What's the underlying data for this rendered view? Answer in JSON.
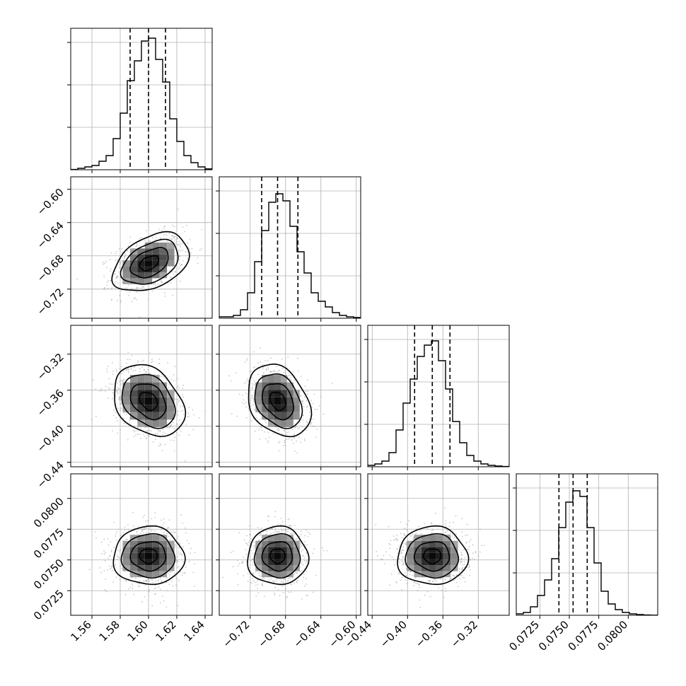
{
  "chart_data": {
    "type": "corner",
    "grid": true,
    "panels": [
      {
        "id": "hist-0",
        "type": "histogram",
        "row": 0,
        "col": 0,
        "xlim": [
          1.545,
          1.645
        ],
        "bin_edges": [
          1.545,
          1.55,
          1.555,
          1.56,
          1.565,
          1.57,
          1.575,
          1.58,
          1.585,
          1.59,
          1.595,
          1.6,
          1.605,
          1.61,
          1.615,
          1.62,
          1.625,
          1.63,
          1.635,
          1.64,
          1.645
        ],
        "counts": [
          0.2,
          1,
          2,
          3,
          6,
          10,
          22,
          40,
          63,
          77,
          91,
          93,
          78,
          62,
          36,
          20,
          10,
          5,
          2,
          0.6
        ],
        "ymax": 100,
        "ygrid": [
          30,
          60,
          90
        ],
        "quantiles": [
          1.587,
          1.6,
          1.612
        ]
      },
      {
        "id": "hist-1",
        "type": "histogram",
        "row": 1,
        "col": 1,
        "xlim": [
          -0.755,
          -0.595
        ],
        "bin_edges": [
          -0.755,
          -0.747,
          -0.739,
          -0.731,
          -0.723,
          -0.715,
          -0.707,
          -0.699,
          -0.691,
          -0.683,
          -0.675,
          -0.667,
          -0.659,
          -0.651,
          -0.643,
          -0.635,
          -0.627,
          -0.619,
          -0.611,
          -0.603,
          -0.595
        ],
        "counts": [
          1,
          1,
          2,
          6,
          18,
          40,
          62,
          82,
          88,
          83,
          65,
          47,
          32,
          18,
          12,
          8,
          4,
          2,
          1,
          0.5
        ],
        "ymax": 100,
        "ygrid": [
          30,
          60,
          90
        ],
        "quantiles": [
          -0.707,
          -0.689,
          -0.666
        ]
      },
      {
        "id": "hist-2",
        "type": "histogram",
        "row": 2,
        "col": 2,
        "xlim": [
          -0.445,
          -0.285
        ],
        "bin_edges": [
          -0.445,
          -0.437,
          -0.429,
          -0.421,
          -0.413,
          -0.405,
          -0.397,
          -0.389,
          -0.381,
          -0.373,
          -0.365,
          -0.357,
          -0.349,
          -0.341,
          -0.333,
          -0.325,
          -0.317,
          -0.309,
          -0.301,
          -0.293,
          -0.285
        ],
        "counts": [
          1,
          2,
          4,
          10,
          26,
          45,
          62,
          78,
          86,
          89,
          75,
          55,
          32,
          17,
          8,
          4,
          2,
          1,
          0.5,
          0.2
        ],
        "ymax": 100,
        "ygrid": [
          30,
          60,
          90
        ],
        "quantiles": [
          -0.392,
          -0.372,
          -0.352
        ]
      },
      {
        "id": "hist-3",
        "type": "histogram",
        "row": 3,
        "col": 3,
        "xlim": [
          0.0705,
          0.0825
        ],
        "bin_edges": [
          0.0705,
          0.0711,
          0.0717,
          0.0723,
          0.0729,
          0.0735,
          0.0741,
          0.0747,
          0.0753,
          0.0759,
          0.0765,
          0.0771,
          0.0777,
          0.0783,
          0.0789,
          0.0795,
          0.0801,
          0.0807,
          0.0813,
          0.0819,
          0.0825
        ],
        "counts": [
          1,
          2,
          6,
          14,
          25,
          40,
          62,
          80,
          88,
          84,
          62,
          37,
          17,
          8,
          4,
          2,
          1,
          0.5,
          0.2,
          0.1
        ],
        "ymax": 100,
        "ygrid": [
          30,
          60,
          90
        ],
        "quantiles": [
          0.07412,
          0.07532,
          0.07652
        ]
      },
      {
        "id": "2d-1-0",
        "type": "hist2d",
        "row": 1,
        "col": 0,
        "xlim": [
          1.545,
          1.645
        ],
        "ylim": [
          -0.755,
          -0.585
        ],
        "center": [
          1.6,
          -0.689
        ],
        "sigma": [
          0.0125,
          0.0171
        ],
        "rho": 0.38,
        "lean": 0.15
      },
      {
        "id": "2d-2-0",
        "type": "hist2d",
        "row": 2,
        "col": 0,
        "xlim": [
          1.545,
          1.645
        ],
        "ylim": [
          -0.445,
          -0.288
        ],
        "center": [
          1.6,
          -0.372
        ],
        "sigma": [
          0.0125,
          0.0198
        ],
        "rho": -0.3,
        "lean": 0
      },
      {
        "id": "2d-2-1",
        "type": "hist2d",
        "row": 2,
        "col": 1,
        "xlim": [
          -0.755,
          -0.595
        ],
        "ylim": [
          -0.445,
          -0.288
        ],
        "center": [
          -0.689,
          -0.372
        ],
        "sigma": [
          0.0171,
          0.0198
        ],
        "rho": -0.3,
        "lean": 0.08
      },
      {
        "id": "2d-3-0",
        "type": "hist2d",
        "row": 3,
        "col": 0,
        "xlim": [
          1.545,
          1.645
        ],
        "ylim": [
          0.0705,
          0.082
        ],
        "center": [
          1.6,
          0.07532
        ],
        "sigma": [
          0.0125,
          0.00118
        ],
        "rho": 0,
        "lean": 0
      },
      {
        "id": "2d-3-1",
        "type": "hist2d",
        "row": 3,
        "col": 1,
        "xlim": [
          -0.755,
          -0.595
        ],
        "ylim": [
          0.0705,
          0.082
        ],
        "center": [
          -0.689,
          0.07532
        ],
        "sigma": [
          0.0171,
          0.00118
        ],
        "rho": 0,
        "lean": 0
      },
      {
        "id": "2d-3-2",
        "type": "hist2d",
        "row": 3,
        "col": 2,
        "xlim": [
          -0.445,
          -0.285
        ],
        "ylim": [
          0.0705,
          0.082
        ],
        "center": [
          -0.372,
          0.07532
        ],
        "sigma": [
          0.0198,
          0.00118
        ],
        "rho": 0,
        "lean": 0
      }
    ],
    "x_ticks": [
      {
        "col": 0,
        "values": [
          1.56,
          1.58,
          1.6,
          1.62,
          1.64
        ],
        "labels": [
          "1.56",
          "1.58",
          "1.60",
          "1.62",
          "1.64"
        ]
      },
      {
        "col": 1,
        "values": [
          -0.72,
          -0.68,
          -0.64,
          -0.6
        ],
        "labels": [
          "−0.72",
          "−0.68",
          "−0.64",
          "−0.60"
        ]
      },
      {
        "col": 2,
        "values": [
          -0.44,
          -0.4,
          -0.36,
          -0.32
        ],
        "labels": [
          "−0.44",
          "−0.40",
          "−0.36",
          "−0.32"
        ]
      },
      {
        "col": 3,
        "values": [
          0.0725,
          0.075,
          0.0775,
          0.08
        ],
        "labels": [
          "0.0725",
          "0.0750",
          "0.0775",
          "0.0800"
        ]
      }
    ],
    "y_ticks": [
      {
        "row": 1,
        "values": [
          -0.6,
          -0.64,
          -0.68,
          -0.72
        ],
        "labels": [
          "−0.60",
          "−0.64",
          "−0.68",
          "−0.72"
        ]
      },
      {
        "row": 2,
        "values": [
          -0.32,
          -0.36,
          -0.4,
          -0.44
        ],
        "labels": [
          "−0.32",
          "−0.36",
          "−0.40",
          "−0.44"
        ]
      },
      {
        "row": 3,
        "values": [
          0.08,
          0.0775,
          0.075,
          0.0725
        ],
        "labels": [
          "0.0800",
          "0.0775",
          "0.0750",
          "0.0725"
        ]
      }
    ],
    "contour_levels_sigma": [
      0.5,
      1.0,
      1.5,
      2.0
    ],
    "colors": {
      "line": "#000000",
      "grid": "#b0b0b0",
      "points": "#9a9a9a",
      "background": "#ffffff"
    }
  }
}
